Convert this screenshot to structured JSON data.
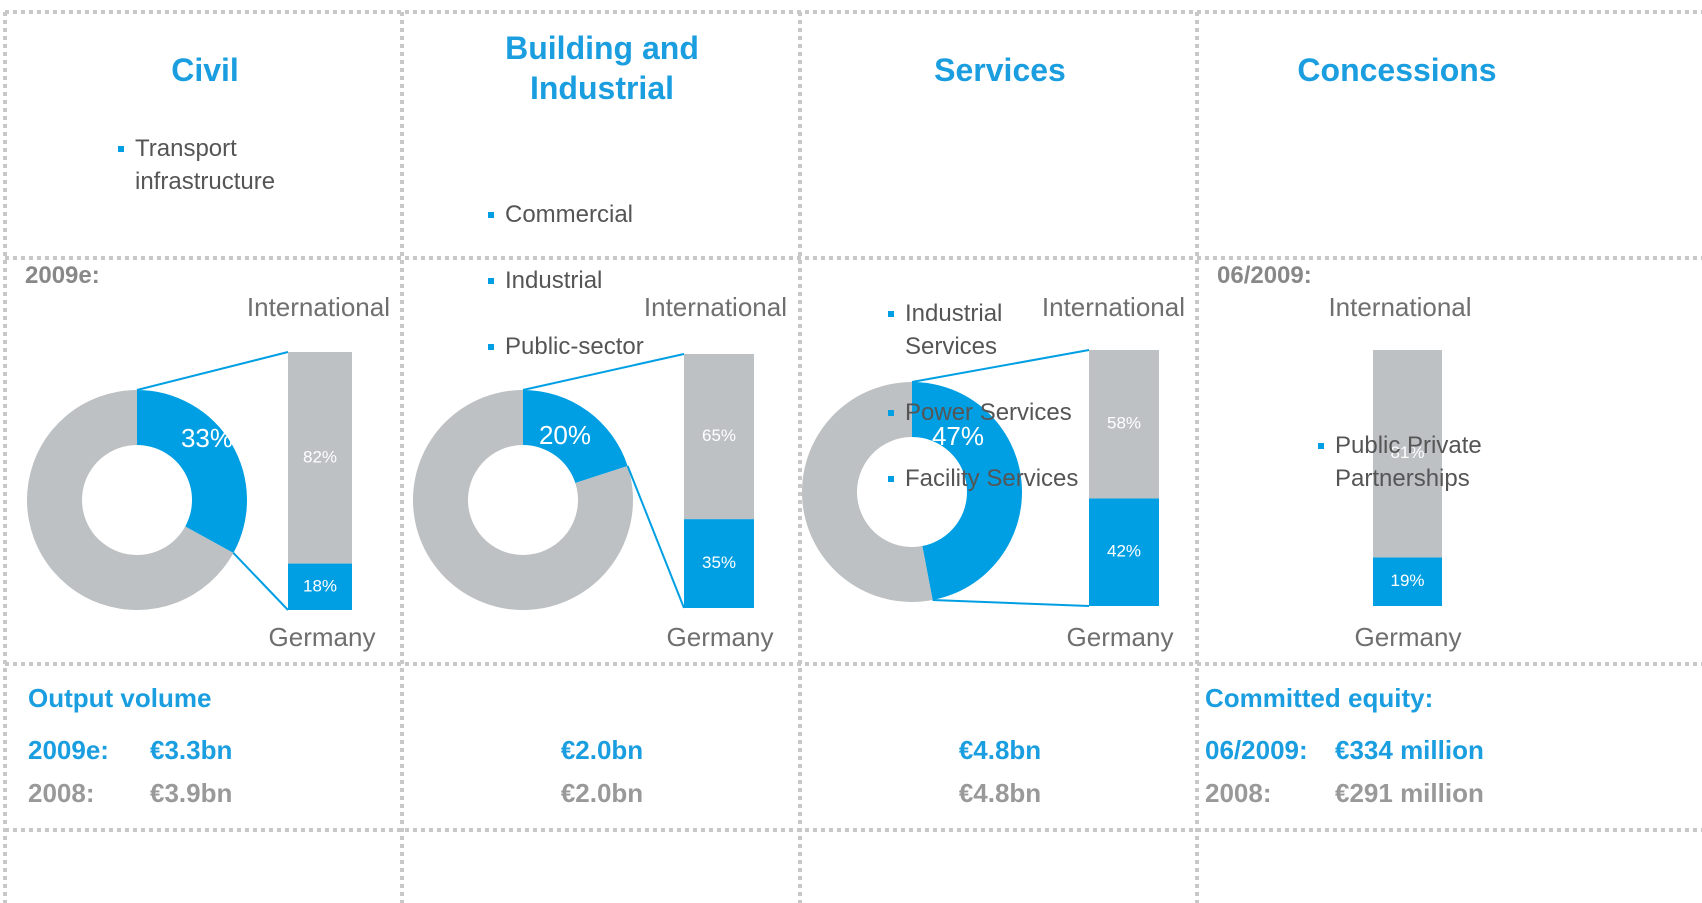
{
  "columns": [
    {
      "title": "Civil",
      "bullets": [
        "Transport infrastructure"
      ],
      "period": "2009e:",
      "metric": "Output volume",
      "rows": [
        [
          "2009e:",
          "€3.3bn"
        ],
        [
          "2008:",
          "€3.9bn"
        ]
      ]
    },
    {
      "title": "Building and Industrial",
      "bullets": [
        "Commercial",
        "Industrial",
        "Public-sector"
      ],
      "rows": [
        [
          "€2.0bn"
        ],
        [
          "€2.0bn"
        ]
      ]
    },
    {
      "title": "Services",
      "bullets": [
        "Industrial Services",
        "Power Services",
        "Facility Services"
      ],
      "rows": [
        [
          "€4.8bn"
        ],
        [
          "€4.8bn"
        ]
      ]
    },
    {
      "title": "Concessions",
      "bullets": [
        "Public Private Partnerships"
      ],
      "period": "06/2009:",
      "metric": "Committed equity:",
      "rows": [
        [
          "06/2009:",
          "€334 million"
        ],
        [
          "2008:",
          "€291 million"
        ]
      ]
    }
  ],
  "chart_data": [
    {
      "type": "pie",
      "values": [
        33,
        67
      ],
      "value_labels": [
        "33%",
        null
      ],
      "colors": [
        "#009fe3",
        "#bdc1c3"
      ]
    },
    {
      "type": "bar",
      "ylim": [
        0,
        100
      ],
      "series": [
        {
          "name": "Germany",
          "color": "#009fe3",
          "values": [
            18
          ],
          "value_labels": [
            "18%"
          ]
        },
        {
          "name": "International",
          "color": "#bdc1c3",
          "values": [
            82
          ],
          "value_labels": [
            "82%"
          ]
        }
      ]
    },
    {
      "type": "pie",
      "values": [
        20,
        80
      ],
      "value_labels": [
        "20%",
        null
      ],
      "colors": [
        "#009fe3",
        "#bdc1c3"
      ]
    },
    {
      "type": "bar",
      "ylim": [
        0,
        100
      ],
      "series": [
        {
          "name": "Germany",
          "color": "#009fe3",
          "values": [
            35
          ],
          "value_labels": [
            "35%"
          ]
        },
        {
          "name": "International",
          "color": "#bdc1c3",
          "values": [
            65
          ],
          "value_labels": [
            "65%"
          ]
        }
      ]
    },
    {
      "type": "pie",
      "values": [
        47,
        53
      ],
      "value_labels": [
        "47%",
        null
      ],
      "colors": [
        "#009fe3",
        "#bdc1c3"
      ]
    },
    {
      "type": "bar",
      "ylim": [
        0,
        100
      ],
      "series": [
        {
          "name": "Germany",
          "color": "#009fe3",
          "values": [
            42
          ],
          "value_labels": [
            "42%"
          ]
        },
        {
          "name": "International",
          "color": "#bdc1c3",
          "values": [
            58
          ],
          "value_labels": [
            "58%"
          ]
        }
      ]
    },
    {
      "type": "bar",
      "ylim": [
        0,
        100
      ],
      "series": [
        {
          "name": "Germany",
          "color": "#009fe3",
          "values": [
            19
          ],
          "value_labels": [
            "19%"
          ]
        },
        {
          "name": "International",
          "color": "#bdc1c3",
          "values": [
            81
          ],
          "value_labels": [
            "81%"
          ]
        }
      ]
    }
  ]
}
